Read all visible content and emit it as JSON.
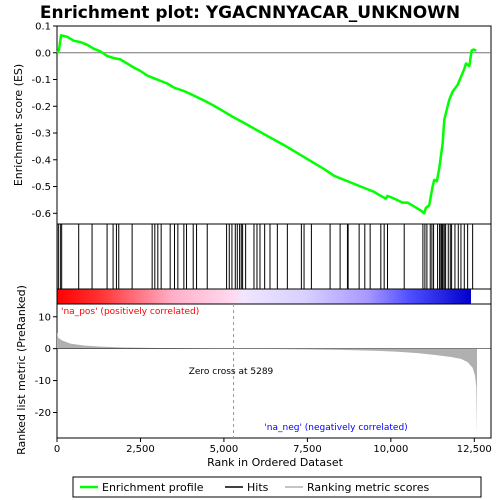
{
  "chart_data": {
    "type": "line",
    "title": "Enrichment plot: YGACNNYACAR_UNKNOWN",
    "xlabel": "Rank in Ordered Dataset",
    "ylabel_top": "Enrichment score (ES)",
    "ylabel_bottom": "Ranked list metric (PreRanked)",
    "xlim": [
      0,
      13000
    ],
    "x_ticks": [
      0,
      2500,
      5000,
      7500,
      10000,
      12500
    ],
    "x_tick_labels": [
      "0",
      "2,500",
      "5,000",
      "7,500",
      "10,000",
      "12,500"
    ],
    "es_ylim": [
      -0.64,
      0.1
    ],
    "es_ticks": [
      0.1,
      0.0,
      -0.1,
      -0.2,
      -0.3,
      -0.4,
      -0.5,
      -0.6
    ],
    "es_tick_labels": [
      "0.1",
      "0.0",
      "-0.1",
      "-0.2",
      "-0.3",
      "-0.4",
      "-0.5",
      "-0.6"
    ],
    "metric_ylim": [
      -28,
      14
    ],
    "metric_ticks": [
      10,
      0,
      -10,
      -20
    ],
    "metric_tick_labels": [
      "10",
      "0",
      "-10",
      "-20"
    ],
    "es_curve": {
      "name": "Enrichment profile",
      "color": "#00ff00",
      "points": [
        [
          0,
          0.0
        ],
        [
          60,
          0.01
        ],
        [
          120,
          0.065
        ],
        [
          300,
          0.06
        ],
        [
          500,
          0.045
        ],
        [
          700,
          0.04
        ],
        [
          900,
          0.03
        ],
        [
          1100,
          0.015
        ],
        [
          1300,
          0.005
        ],
        [
          1500,
          -0.012
        ],
        [
          1700,
          -0.02
        ],
        [
          1900,
          -0.025
        ],
        [
          2100,
          -0.04
        ],
        [
          2300,
          -0.055
        ],
        [
          2500,
          -0.068
        ],
        [
          2700,
          -0.085
        ],
        [
          2900,
          -0.095
        ],
        [
          3100,
          -0.105
        ],
        [
          3300,
          -0.115
        ],
        [
          3500,
          -0.13
        ],
        [
          3800,
          -0.143
        ],
        [
          4100,
          -0.16
        ],
        [
          4400,
          -0.178
        ],
        [
          4700,
          -0.198
        ],
        [
          5000,
          -0.22
        ],
        [
          5300,
          -0.242
        ],
        [
          5600,
          -0.262
        ],
        [
          6000,
          -0.29
        ],
        [
          6400,
          -0.318
        ],
        [
          6800,
          -0.345
        ],
        [
          7200,
          -0.375
        ],
        [
          7600,
          -0.405
        ],
        [
          8000,
          -0.435
        ],
        [
          8300,
          -0.46
        ],
        [
          8600,
          -0.475
        ],
        [
          8900,
          -0.49
        ],
        [
          9200,
          -0.505
        ],
        [
          9500,
          -0.52
        ],
        [
          9700,
          -0.535
        ],
        [
          9850,
          -0.545
        ],
        [
          9900,
          -0.535
        ],
        [
          10100,
          -0.545
        ],
        [
          10350,
          -0.56
        ],
        [
          10500,
          -0.56
        ],
        [
          10700,
          -0.575
        ],
        [
          10900,
          -0.59
        ],
        [
          11000,
          -0.6
        ],
        [
          11050,
          -0.58
        ],
        [
          11150,
          -0.57
        ],
        [
          11250,
          -0.5
        ],
        [
          11300,
          -0.475
        ],
        [
          11380,
          -0.48
        ],
        [
          11450,
          -0.43
        ],
        [
          11550,
          -0.34
        ],
        [
          11600,
          -0.25
        ],
        [
          11700,
          -0.2
        ],
        [
          11750,
          -0.175
        ],
        [
          11850,
          -0.145
        ],
        [
          12000,
          -0.12
        ],
        [
          12100,
          -0.09
        ],
        [
          12200,
          -0.06
        ],
        [
          12250,
          -0.04
        ],
        [
          12350,
          -0.05
        ],
        [
          12420,
          0.008
        ],
        [
          12480,
          0.012
        ],
        [
          12560,
          0.008
        ]
      ]
    },
    "hits": [
      40,
      100,
      140,
      650,
      1050,
      1500,
      1680,
      1780,
      1850,
      2250,
      2850,
      2930,
      3020,
      3120,
      3390,
      3520,
      3620,
      3800,
      3880,
      4080,
      4180,
      4500,
      5080,
      5160,
      5240,
      5340,
      5400,
      5470,
      5520,
      5560,
      5650,
      5900,
      5990,
      6080,
      6220,
      6380,
      6600,
      6900,
      7320,
      7400,
      7620,
      8180,
      8480,
      8700,
      8720,
      9050,
      9220,
      9380,
      9700,
      9800,
      9900,
      10400,
      10960,
      11020,
      11080,
      11180,
      11230,
      11280,
      11400,
      11460,
      11500,
      11530,
      11560,
      11600,
      11640,
      11720,
      11780,
      11820,
      11920,
      12020,
      12100,
      12200,
      12300,
      12450
    ],
    "metric_curve": {
      "name": "Ranking metric scores",
      "color": "#b0b0b0",
      "points": [
        [
          0,
          5.2
        ],
        [
          40,
          3.4
        ],
        [
          150,
          2.6
        ],
        [
          400,
          1.6
        ],
        [
          800,
          1.0
        ],
        [
          1300,
          0.65
        ],
        [
          2000,
          0.38
        ],
        [
          3000,
          0.2
        ],
        [
          4000,
          0.1
        ],
        [
          5289,
          0.0
        ],
        [
          6500,
          -0.1
        ],
        [
          7500,
          -0.22
        ],
        [
          8500,
          -0.4
        ],
        [
          9500,
          -0.65
        ],
        [
          10200,
          -0.95
        ],
        [
          10800,
          -1.4
        ],
        [
          11300,
          -1.95
        ],
        [
          11800,
          -2.6
        ],
        [
          12100,
          -3.2
        ],
        [
          12300,
          -4.2
        ],
        [
          12450,
          -6.0
        ],
        [
          12520,
          -8.5
        ],
        [
          12560,
          -12
        ],
        [
          12580,
          -27
        ]
      ]
    },
    "zero_cross": 5289,
    "zero_cross_label": "Zero cross at 5289",
    "pos_label": "'na_pos' (positively correlated)",
    "neg_label": "'na_neg' (negatively correlated)",
    "pos_color": "#ff0000",
    "neg_color": "#0000ff",
    "legend": [
      {
        "label": "Enrichment profile",
        "color": "#00ff00"
      },
      {
        "label": "Hits",
        "color": "#000000"
      },
      {
        "label": "Ranking metric scores",
        "color": "#b0b0b0"
      }
    ]
  }
}
